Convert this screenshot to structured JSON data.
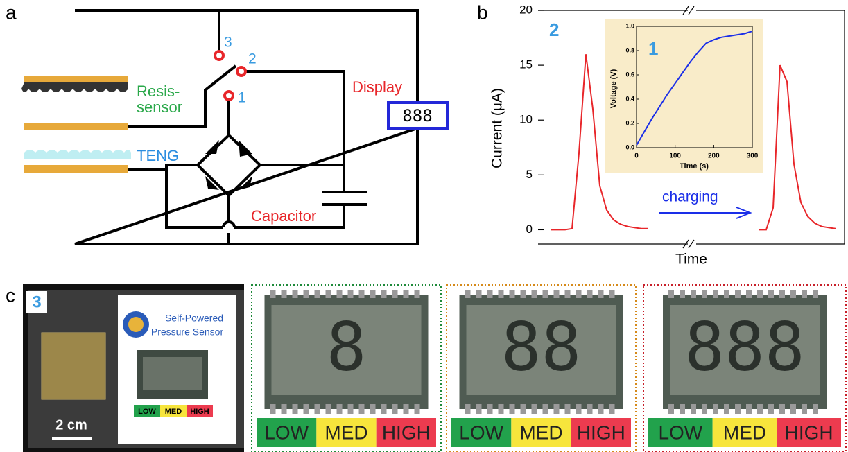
{
  "panel_a": {
    "label": "a",
    "switch_positions": [
      "3",
      "2",
      "1"
    ],
    "sensor_label": [
      "Resis-",
      "sensor"
    ],
    "teng_label": "TENG",
    "display_label": "Display",
    "display_digits": "888",
    "capacitor_label": "Capacitor"
  },
  "panel_b": {
    "label": "b"
  },
  "chart_data": [
    {
      "type": "line",
      "ylabel": "Current (μA)",
      "xlabel": "Time",
      "ylim": [
        -1.3,
        20
      ],
      "yticks": [
        0,
        5,
        10,
        15,
        20
      ],
      "annotations": [
        "2",
        "charging"
      ],
      "series": [
        {
          "color": "#e8262a",
          "values": [
            0,
            0,
            0,
            0.1,
            7,
            16,
            11,
            4,
            1.8,
            0.9,
            0.5,
            0.3,
            0.2,
            0.1,
            0.1,
            null,
            null,
            null,
            null,
            null,
            null,
            null,
            null,
            null,
            null,
            null,
            null,
            null,
            null,
            null,
            0,
            0,
            2,
            15,
            13.5,
            6,
            2.5,
            1.2,
            0.6,
            0.3,
            0.2,
            0.1
          ]
        }
      ]
    },
    {
      "type": "line",
      "annotation": "1",
      "xlabel": "Time (s)",
      "ylabel": "Voltage (V)",
      "xlim": [
        0,
        300
      ],
      "xticks": [
        0,
        100,
        200,
        300
      ],
      "ylim": [
        0,
        1.0
      ],
      "yticks": [
        {
          "value": 0,
          "label": "0.0"
        },
        {
          "value": 0.2,
          "label": "0.2"
        },
        {
          "value": 0.4,
          "label": "0.4"
        },
        {
          "value": 0.6,
          "label": "0.6"
        },
        {
          "value": 0.8,
          "label": "0.8"
        },
        {
          "value": 1.0,
          "label": "1.0"
        }
      ],
      "series": [
        {
          "color": "#1a2ee8",
          "x": [
            0,
            20,
            40,
            60,
            80,
            100,
            120,
            140,
            160,
            180,
            200,
            220,
            240,
            260,
            280,
            300
          ],
          "values": [
            0.02,
            0.13,
            0.24,
            0.34,
            0.44,
            0.53,
            0.62,
            0.71,
            0.79,
            0.86,
            0.89,
            0.91,
            0.92,
            0.93,
            0.94,
            0.96
          ]
        }
      ]
    }
  ],
  "panel_c": {
    "label": "c",
    "photo_number": "3",
    "card_title": [
      "Self-Powered",
      "Pressure Sensor"
    ],
    "scale_bar": "2 cm",
    "card_levels": [
      "LOW",
      "MED",
      "HIGH"
    ],
    "displays": [
      {
        "digits": "8",
        "levels": [
          "LOW",
          "MED",
          "HIGH"
        ]
      },
      {
        "digits": "88",
        "levels": [
          "LOW",
          "MED",
          "HIGH"
        ]
      },
      {
        "digits": "888",
        "levels": [
          "LOW",
          "MED",
          "HIGH"
        ]
      }
    ]
  }
}
